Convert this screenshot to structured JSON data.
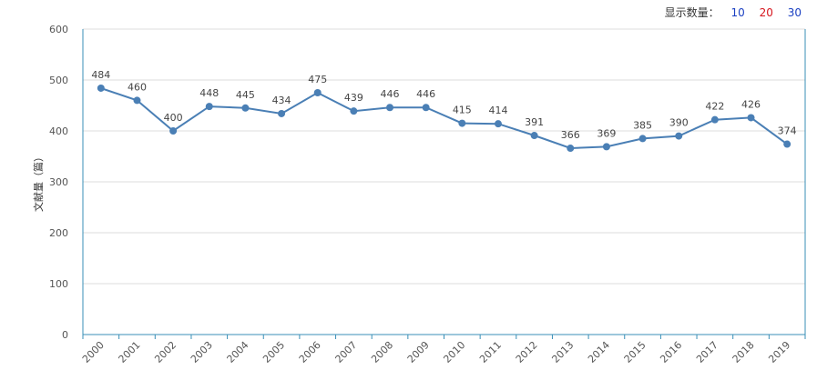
{
  "controls": {
    "label": "显示数量：",
    "options": [
      {
        "label": "10",
        "color": "#1a3fc2"
      },
      {
        "label": "20",
        "color": "#d6161e"
      },
      {
        "label": "30",
        "color": "#1a3fc2"
      }
    ]
  },
  "chart_data": {
    "type": "line",
    "title": "",
    "xlabel": "",
    "ylabel": "文献量（篇）",
    "ylim": [
      0,
      600
    ],
    "yticks": [
      0,
      100,
      200,
      300,
      400,
      500,
      600
    ],
    "grid": true,
    "color": "#4a7fb5",
    "categories": [
      "2000",
      "2001",
      "2002",
      "2003",
      "2004",
      "2005",
      "2006",
      "2007",
      "2008",
      "2009",
      "2010",
      "2011",
      "2012",
      "2013",
      "2014",
      "2015",
      "2016",
      "2017",
      "2018",
      "2019"
    ],
    "values": [
      484,
      460,
      400,
      448,
      445,
      434,
      475,
      439,
      446,
      446,
      415,
      414,
      391,
      366,
      369,
      385,
      390,
      422,
      426,
      374
    ]
  }
}
